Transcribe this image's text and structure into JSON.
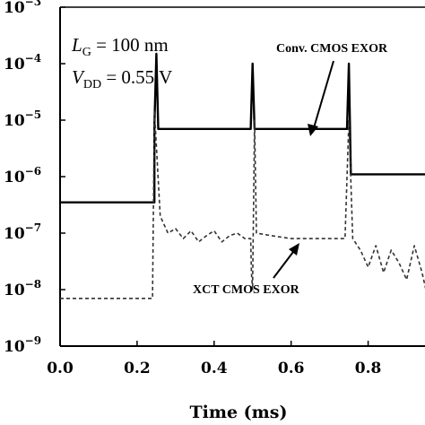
{
  "chart_data": {
    "type": "line",
    "title": "",
    "xlabel": "Time (ms)",
    "ylabel": "",
    "xlim": [
      0,
      0.95
    ],
    "ylim": [
      1e-09,
      0.001
    ],
    "y_scale": "log",
    "grid": false,
    "x_ticks": [
      "0.0",
      "0.2",
      "0.4",
      "0.6",
      "0.8"
    ],
    "x_tick_values": [
      0,
      0.2,
      0.4,
      0.6,
      0.8
    ],
    "y_ticks": [
      {
        "base": "10",
        "exp": "-3",
        "value": 0.001
      },
      {
        "base": "10",
        "exp": "-4",
        "value": 0.0001
      },
      {
        "base": "10",
        "exp": "-5",
        "value": 1e-05
      },
      {
        "base": "10",
        "exp": "-6",
        "value": 1e-06
      },
      {
        "base": "10",
        "exp": "-7",
        "value": 1e-07
      },
      {
        "base": "10",
        "exp": "-8",
        "value": 1e-08
      },
      {
        "base": "10",
        "exp": "-9",
        "value": 1e-09
      }
    ],
    "annotations": {
      "lg": {
        "sym": "L",
        "sub": "G",
        "rest": " = 100 nm"
      },
      "vdd": {
        "sym": "V",
        "sub": "DD",
        "rest": " = 0.55 V"
      }
    },
    "series": [
      {
        "name": "Conv. CMOS EXOR",
        "style": "solid",
        "color": "#000000",
        "points": [
          [
            0.0,
            3.5e-07
          ],
          [
            0.245,
            3.5e-07
          ],
          [
            0.245,
            8e-06
          ],
          [
            0.25,
            0.00015
          ],
          [
            0.255,
            7e-06
          ],
          [
            0.495,
            7e-06
          ],
          [
            0.5,
            0.0001
          ],
          [
            0.505,
            7e-06
          ],
          [
            0.745,
            7e-06
          ],
          [
            0.75,
            0.0001
          ],
          [
            0.755,
            1.1e-06
          ],
          [
            0.95,
            1.1e-06
          ]
        ]
      },
      {
        "name": "XCT CMOS EXOR",
        "style": "dashed",
        "color": "#333333",
        "points": [
          [
            0.0,
            7e-09
          ],
          [
            0.24,
            7e-09
          ],
          [
            0.245,
            1.5e-05
          ],
          [
            0.26,
            2e-07
          ],
          [
            0.28,
            1e-07
          ],
          [
            0.3,
            1.2e-07
          ],
          [
            0.32,
            8e-08
          ],
          [
            0.34,
            1.1e-07
          ],
          [
            0.36,
            7e-08
          ],
          [
            0.38,
            9e-08
          ],
          [
            0.4,
            1.1e-07
          ],
          [
            0.42,
            7e-08
          ],
          [
            0.44,
            9e-08
          ],
          [
            0.46,
            1e-07
          ],
          [
            0.48,
            8e-08
          ],
          [
            0.495,
            8e-08
          ],
          [
            0.497,
            2e-08
          ],
          [
            0.5,
            1e-08
          ],
          [
            0.505,
            1e-05
          ],
          [
            0.51,
            1e-07
          ],
          [
            0.55,
            9e-08
          ],
          [
            0.6,
            8e-08
          ],
          [
            0.65,
            8e-08
          ],
          [
            0.7,
            8e-08
          ],
          [
            0.74,
            8e-08
          ],
          [
            0.75,
            1e-05
          ],
          [
            0.76,
            8e-08
          ],
          [
            0.78,
            5e-08
          ],
          [
            0.8,
            2.5e-08
          ],
          [
            0.82,
            6e-08
          ],
          [
            0.84,
            2e-08
          ],
          [
            0.86,
            5e-08
          ],
          [
            0.88,
            3e-08
          ],
          [
            0.9,
            1.5e-08
          ],
          [
            0.92,
            6e-08
          ],
          [
            0.94,
            2e-08
          ],
          [
            0.95,
            1e-08
          ]
        ]
      }
    ],
    "series_labels": {
      "conv": "Conv. CMOS EXOR",
      "xct": "XCT CMOS EXOR"
    }
  }
}
